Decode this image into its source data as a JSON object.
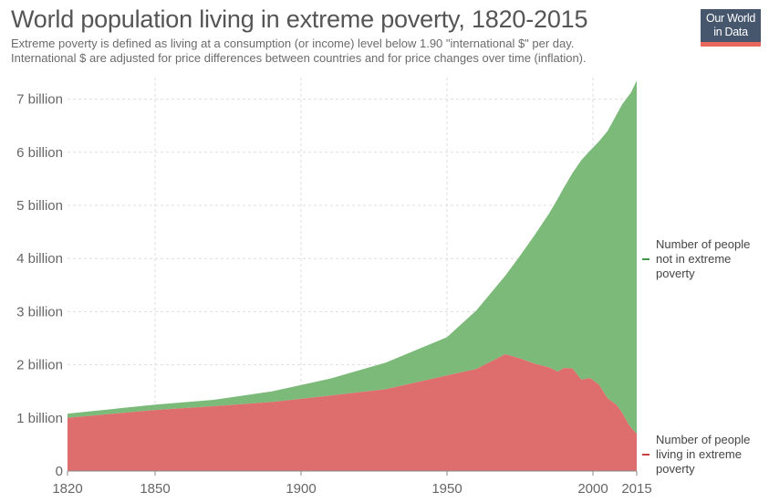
{
  "header": {
    "title": "World population living in extreme poverty, 1820-2015",
    "subtitle_line1": "Extreme poverty is defined as living at a consumption (or income) level below 1.90 \"international $\" per day.",
    "subtitle_line2": "International $ are adjusted for price differences between countries and for price changes over time (inflation)."
  },
  "logo": {
    "line1": "Our World",
    "line2": "in Data",
    "bg_color": "#46566d",
    "accent_color": "#e7685a"
  },
  "legend": {
    "not_poor": {
      "line1": "Number of people",
      "line2": "not in extreme",
      "line3": "poverty",
      "color": "#3b9a47"
    },
    "poor": {
      "line1": "Number of people",
      "line2": "living in extreme",
      "line3": "poverty",
      "color": "#c8403f"
    }
  },
  "chart_data": {
    "type": "area",
    "stacked": true,
    "title": "World population living in extreme poverty, 1820-2015",
    "x_unit": "year",
    "y_unit": "billion people",
    "xlim": [
      1820,
      2015
    ],
    "ylim": [
      0,
      7
    ],
    "x_ticks": [
      1820,
      1850,
      1900,
      1950,
      2000,
      2015
    ],
    "x_tick_labels": [
      "1820",
      "1850",
      "1900",
      "1950",
      "2000",
      "2015"
    ],
    "y_ticks": [
      0,
      1,
      2,
      3,
      4,
      5,
      6,
      7
    ],
    "y_tick_labels": [
      "0",
      "1 billion",
      "2 billion",
      "3 billion",
      "4 billion",
      "5 billion",
      "6 billion",
      "7 billion"
    ],
    "grid": true,
    "legend_position": "right",
    "series": [
      {
        "name": "Number of people living in extreme poverty",
        "color": "#de6e6d",
        "x": [
          1820,
          1850,
          1870,
          1890,
          1910,
          1929,
          1950,
          1960,
          1970,
          1975,
          1980,
          1985,
          1988,
          1990,
          1993,
          1996,
          1999,
          2002,
          2005,
          2008,
          2010,
          2012,
          2013,
          2015
        ],
        "values": [
          1.0,
          1.15,
          1.22,
          1.3,
          1.42,
          1.54,
          1.8,
          1.92,
          2.2,
          2.12,
          2.02,
          1.95,
          1.87,
          1.94,
          1.93,
          1.72,
          1.75,
          1.63,
          1.37,
          1.25,
          1.1,
          0.9,
          0.82,
          0.7
        ]
      },
      {
        "name": "Number of people not in extreme poverty",
        "color": "#7cba7a",
        "x": [
          1820,
          1850,
          1870,
          1890,
          1910,
          1929,
          1950,
          1960,
          1970,
          1975,
          1980,
          1985,
          1988,
          1990,
          1993,
          1996,
          1999,
          2002,
          2005,
          2008,
          2010,
          2012,
          2013,
          2015
        ],
        "values": [
          0.08,
          0.1,
          0.12,
          0.2,
          0.32,
          0.5,
          0.72,
          1.1,
          1.48,
          1.93,
          2.42,
          2.9,
          3.26,
          3.39,
          3.68,
          4.13,
          4.28,
          4.57,
          5.03,
          5.45,
          5.8,
          6.15,
          6.3,
          6.65
        ]
      }
    ]
  }
}
